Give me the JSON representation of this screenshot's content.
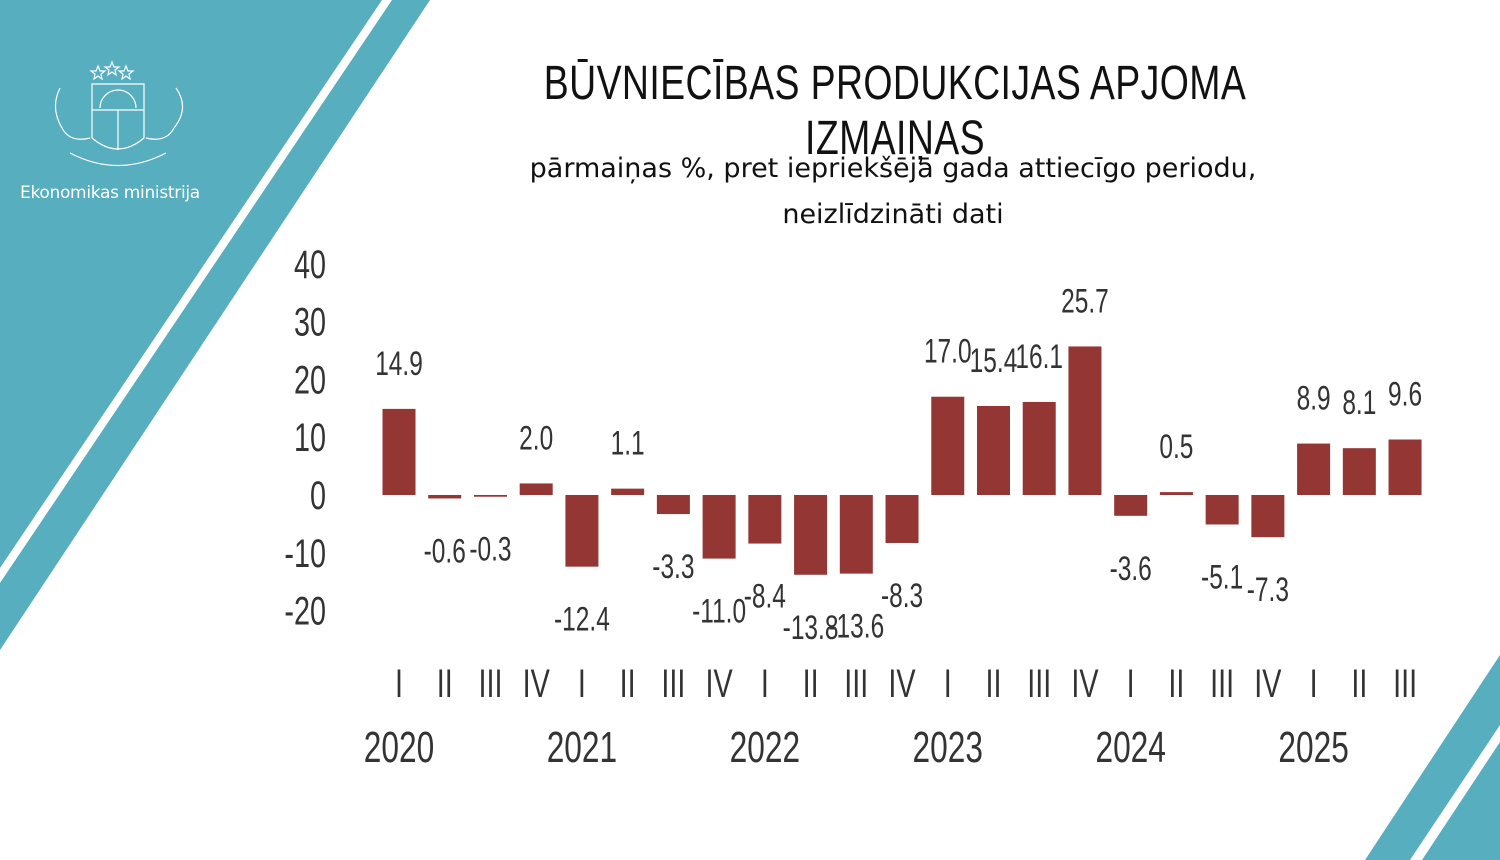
{
  "header": {
    "ministry": "Ekonomikas ministrija",
    "title": "BŪVNIECĪBAS PRODUKCIJAS APJOMA IZMAIŅAS",
    "subtitle_line1": "pārmaiņas %, pret iepriekšējā gada attiecīgo periodu,",
    "subtitle_line2": "neizlīdzināti dati"
  },
  "colors": {
    "accent": "#56aebf",
    "bar": "#943634",
    "text": "#333333"
  },
  "chart_data": {
    "type": "bar",
    "title": "BŪVNIECĪBAS PRODUKCIJAS APJOMA IZMAIŅAS",
    "subtitle": "pārmaiņas %, pret iepriekšējā gada attiecīgo periodu, neizlīdzināti dati",
    "ylim": [
      -20,
      40
    ],
    "yticks": [
      "40",
      "30",
      "20",
      "10",
      "0",
      "-10",
      "-20"
    ],
    "grid": false,
    "categories": [
      "I",
      "II",
      "III",
      "IV",
      "I",
      "II",
      "III",
      "IV",
      "I",
      "II",
      "III",
      "IV",
      "I",
      "II",
      "III",
      "IV",
      "I",
      "II",
      "III",
      "IV",
      "I",
      "II",
      "III"
    ],
    "years": [
      {
        "label": "2020",
        "quarters": 4
      },
      {
        "label": "2021",
        "quarters": 4
      },
      {
        "label": "2022",
        "quarters": 4
      },
      {
        "label": "2023",
        "quarters": 4
      },
      {
        "label": "2024",
        "quarters": 4
      },
      {
        "label": "2025",
        "quarters": 3
      }
    ],
    "values": [
      14.9,
      -0.6,
      -0.3,
      2.0,
      -12.4,
      1.1,
      -3.3,
      -11.0,
      -8.4,
      -13.8,
      -13.6,
      -8.3,
      17.0,
      15.4,
      16.1,
      25.7,
      -3.6,
      0.5,
      -5.1,
      -7.3,
      8.9,
      8.1,
      9.6
    ],
    "labels": [
      "14.9",
      "-0.6",
      "-0.3",
      "2.0",
      "-12.4",
      "1.1",
      "-3.3",
      "-11.0",
      "-8.4",
      "-13.8",
      "-13.6",
      "-8.3",
      "17.0",
      "15.4",
      "16.1",
      "25.7",
      "-3.6",
      "0.5",
      "-5.1",
      "-7.3",
      "8.9",
      "8.1",
      "9.6"
    ]
  }
}
